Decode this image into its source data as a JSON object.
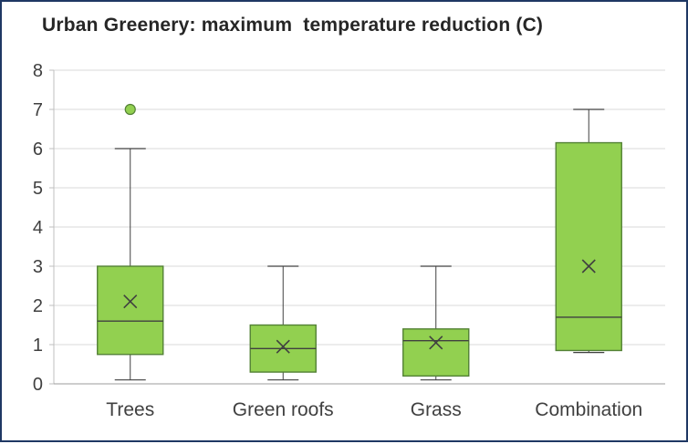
{
  "chart_data": {
    "type": "boxplot",
    "title": "Urban Greenery: maximum  temperature reduction (C)",
    "categories": [
      "Trees",
      "Green roofs",
      "Grass",
      "Combination"
    ],
    "ylim": [
      0,
      8
    ],
    "yticks": [
      0,
      1,
      2,
      3,
      4,
      5,
      6,
      7,
      8
    ],
    "grid": true,
    "legend": "none",
    "series": [
      {
        "name": "Trees",
        "whisker_low": 0.1,
        "q1": 0.75,
        "median": 1.6,
        "q3": 3.0,
        "whisker_high": 6.0,
        "mean": 2.1,
        "outliers": [
          7.0
        ]
      },
      {
        "name": "Green roofs",
        "whisker_low": 0.1,
        "q1": 0.3,
        "median": 0.9,
        "q3": 1.5,
        "whisker_high": 3.0,
        "mean": 0.95,
        "outliers": []
      },
      {
        "name": "Grass",
        "whisker_low": 0.1,
        "q1": 0.2,
        "median": 1.1,
        "q3": 1.4,
        "whisker_high": 3.0,
        "mean": 1.05,
        "outliers": []
      },
      {
        "name": "Combination",
        "whisker_low": 0.8,
        "q1": 0.85,
        "median": 1.7,
        "q3": 6.15,
        "whisker_high": 7.0,
        "mean": 3.0,
        "outliers": []
      }
    ],
    "colors": {
      "box_fill": "#92d050",
      "box_stroke": "#538135",
      "whisker": "#404040",
      "median": "#404040",
      "mean_marker": "#404040",
      "outlier_fill": "#92d050",
      "outlier_stroke": "#538135",
      "grid": "#d9d9d9",
      "axis": "#bfbfbf",
      "baseline": "#9b9b9b",
      "text": "#404040",
      "frame": "#1f3864"
    }
  }
}
